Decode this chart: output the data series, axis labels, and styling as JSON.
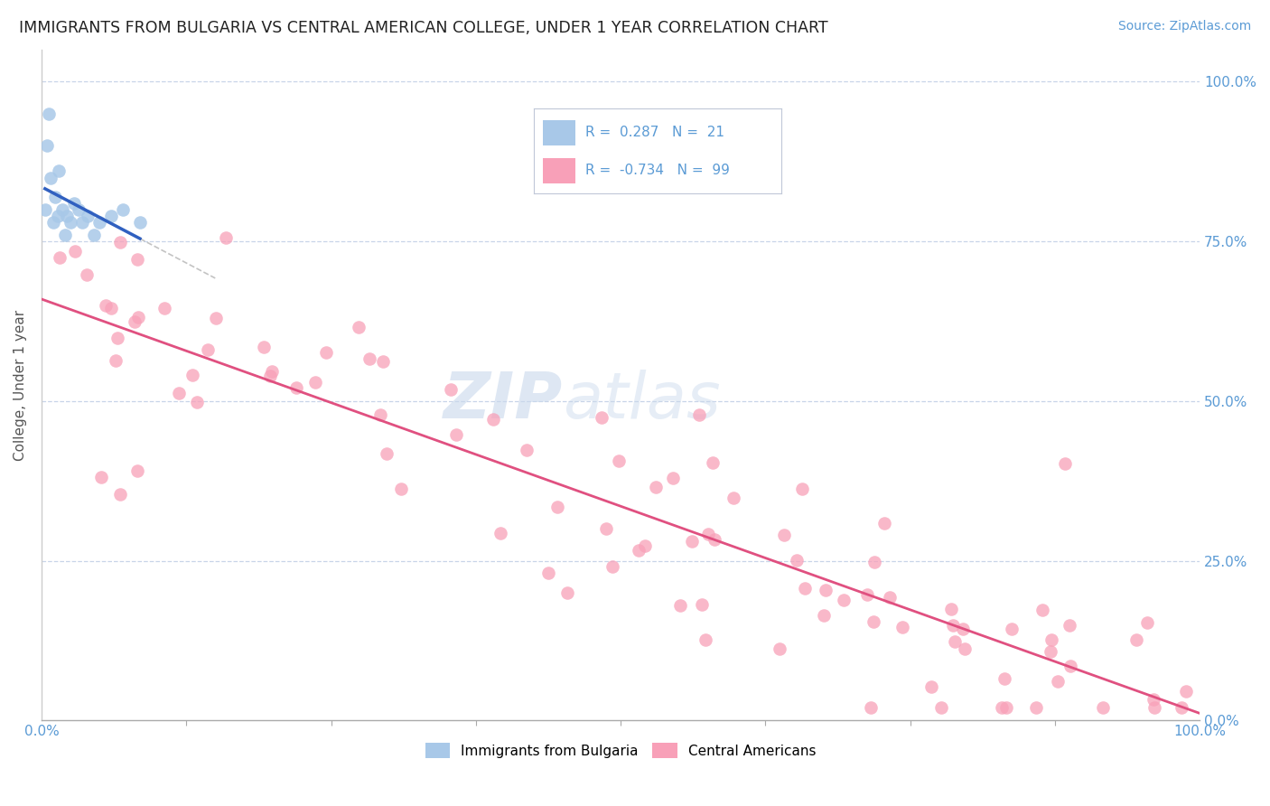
{
  "title": "IMMIGRANTS FROM BULGARIA VS CENTRAL AMERICAN COLLEGE, UNDER 1 YEAR CORRELATION CHART",
  "source": "Source: ZipAtlas.com",
  "ylabel": "College, Under 1 year",
  "legend_label_1": "Immigrants from Bulgaria",
  "legend_label_2": "Central Americans",
  "R1": 0.287,
  "N1": 21,
  "R2": -0.734,
  "N2": 99,
  "color_blue": "#a8c8e8",
  "color_blue_line": "#3060c0",
  "color_pink": "#f8a0b8",
  "color_pink_line": "#e05080",
  "watermark_zip": "ZIP",
  "watermark_atlas": "atlas",
  "bg_color": "#ffffff",
  "grid_color": "#c8d4e8",
  "xlim": [
    0,
    100
  ],
  "ylim": [
    0,
    105
  ],
  "x_ticks": [
    0,
    100
  ],
  "x_tick_labels": [
    "0.0%",
    "100.0%"
  ],
  "y_ticks_right": [
    0,
    25,
    50,
    75,
    100
  ],
  "y_tick_labels_right": [
    "0.0%",
    "25.0%",
    "50.0%",
    "75.0%",
    "100.0%"
  ]
}
